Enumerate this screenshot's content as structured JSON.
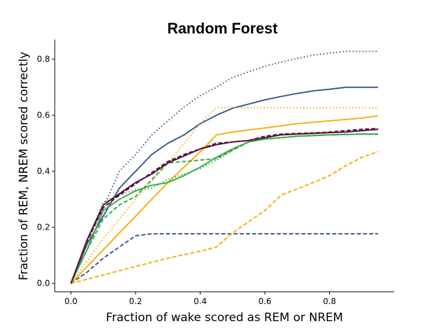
{
  "chart_data": {
    "type": "line",
    "title": "Random Forest",
    "xlabel": "Fraction of wake scored as REM or NREM",
    "ylabel": "Fraction of REM, NREM scored correctly",
    "xlim": [
      -0.05,
      1.0
    ],
    "ylim": [
      -0.03,
      0.87
    ],
    "xticks": [
      0.0,
      0.2,
      0.4,
      0.6,
      0.8
    ],
    "xtick_labels": [
      "0.0",
      "0.2",
      "0.4",
      "0.6",
      "0.8"
    ],
    "yticks": [
      0.0,
      0.2,
      0.4,
      0.6,
      0.8
    ],
    "ytick_labels": [
      "0.0",
      "0.2",
      "0.4",
      "0.6",
      "0.8"
    ],
    "grid": false,
    "legend": "none",
    "series": [
      {
        "color": "#3a5a8c",
        "dash": "solid",
        "x": [
          0.0,
          0.05,
          0.1,
          0.15,
          0.2,
          0.25,
          0.3,
          0.35,
          0.4,
          0.45,
          0.5,
          0.55,
          0.6,
          0.65,
          0.7,
          0.75,
          0.8,
          0.85,
          0.9,
          0.95
        ],
        "y": [
          0.0,
          0.14,
          0.24,
          0.34,
          0.4,
          0.46,
          0.5,
          0.53,
          0.57,
          0.6,
          0.625,
          0.64,
          0.655,
          0.667,
          0.678,
          0.687,
          0.693,
          0.7,
          0.7,
          0.7
        ]
      },
      {
        "color": "#3a5a8c",
        "dash": "dotted",
        "x": [
          0.0,
          0.05,
          0.1,
          0.15,
          0.2,
          0.25,
          0.3,
          0.35,
          0.4,
          0.45,
          0.5,
          0.55,
          0.6,
          0.65,
          0.7,
          0.75,
          0.8,
          0.85,
          0.9,
          0.95
        ],
        "y": [
          0.0,
          0.15,
          0.27,
          0.4,
          0.46,
          0.53,
          0.58,
          0.63,
          0.67,
          0.7,
          0.735,
          0.755,
          0.775,
          0.79,
          0.803,
          0.815,
          0.822,
          0.828,
          0.828,
          0.828
        ]
      },
      {
        "color": "#3a5a8c",
        "dash": "dashed",
        "x": [
          0.0,
          0.05,
          0.1,
          0.15,
          0.2,
          0.25,
          0.3,
          0.4,
          0.5,
          0.6,
          0.7,
          0.8,
          0.95
        ],
        "y": [
          0.0,
          0.04,
          0.09,
          0.13,
          0.17,
          0.177,
          0.177,
          0.177,
          0.177,
          0.177,
          0.177,
          0.177,
          0.177
        ]
      },
      {
        "color": "#f5b00f",
        "dash": "solid",
        "x": [
          0.0,
          0.1,
          0.2,
          0.3,
          0.4,
          0.45,
          0.5,
          0.6,
          0.7,
          0.8,
          0.9,
          0.95
        ],
        "y": [
          0.0,
          0.12,
          0.24,
          0.36,
          0.47,
          0.53,
          0.54,
          0.555,
          0.57,
          0.58,
          0.59,
          0.598
        ]
      },
      {
        "color": "#f5b00f",
        "dash": "dotted",
        "x": [
          0.0,
          0.1,
          0.2,
          0.3,
          0.4,
          0.45,
          0.5,
          0.6,
          0.7,
          0.8,
          0.9,
          0.95
        ],
        "y": [
          0.0,
          0.16,
          0.3,
          0.43,
          0.57,
          0.627,
          0.627,
          0.627,
          0.627,
          0.627,
          0.627,
          0.627
        ]
      },
      {
        "color": "#f5b00f",
        "dash": "dashed",
        "x": [
          0.0,
          0.1,
          0.2,
          0.3,
          0.4,
          0.45,
          0.5,
          0.6,
          0.65,
          0.75,
          0.8,
          0.85,
          0.9,
          0.95
        ],
        "y": [
          0.0,
          0.03,
          0.06,
          0.09,
          0.115,
          0.13,
          0.18,
          0.26,
          0.315,
          0.36,
          0.385,
          0.42,
          0.45,
          0.47
        ]
      },
      {
        "color": "#3aaa48",
        "dash": "solid",
        "x": [
          0.0,
          0.05,
          0.1,
          0.15,
          0.2,
          0.25,
          0.3,
          0.35,
          0.4,
          0.45,
          0.5,
          0.55,
          0.6,
          0.65,
          0.7,
          0.8,
          0.9,
          0.95
        ],
        "y": [
          0.0,
          0.12,
          0.26,
          0.3,
          0.33,
          0.35,
          0.36,
          0.385,
          0.415,
          0.45,
          0.48,
          0.505,
          0.515,
          0.52,
          0.525,
          0.53,
          0.533,
          0.533
        ]
      },
      {
        "color": "#3aaa48",
        "dash": "dotted",
        "x": [
          0.0,
          0.05,
          0.1,
          0.15,
          0.2,
          0.25,
          0.3,
          0.35,
          0.4,
          0.45,
          0.5,
          0.55,
          0.6,
          0.65,
          0.7,
          0.8,
          0.9,
          0.95
        ],
        "y": [
          0.0,
          0.15,
          0.29,
          0.315,
          0.335,
          0.34,
          0.37,
          0.39,
          0.41,
          0.44,
          0.475,
          0.505,
          0.515,
          0.52,
          0.525,
          0.53,
          0.533,
          0.533
        ]
      },
      {
        "color": "#3aaa48",
        "dash": "dashed",
        "x": [
          0.0,
          0.05,
          0.1,
          0.15,
          0.2,
          0.25,
          0.3,
          0.35,
          0.4,
          0.45,
          0.5,
          0.55,
          0.6,
          0.65,
          0.7,
          0.8,
          0.9,
          0.95
        ],
        "y": [
          0.0,
          0.12,
          0.23,
          0.28,
          0.31,
          0.37,
          0.43,
          0.435,
          0.44,
          0.445,
          0.475,
          0.505,
          0.515,
          0.52,
          0.525,
          0.53,
          0.533,
          0.533
        ]
      },
      {
        "color": "#5a1040",
        "dash": "solid",
        "x": [
          0.0,
          0.05,
          0.1,
          0.15,
          0.2,
          0.25,
          0.3,
          0.35,
          0.4,
          0.45,
          0.5,
          0.55,
          0.6,
          0.65,
          0.7,
          0.75,
          0.8,
          0.85,
          0.9,
          0.95
        ],
        "y": [
          0.0,
          0.155,
          0.28,
          0.32,
          0.36,
          0.39,
          0.43,
          0.455,
          0.48,
          0.495,
          0.505,
          0.51,
          0.52,
          0.53,
          0.533,
          0.535,
          0.538,
          0.54,
          0.545,
          0.55
        ]
      },
      {
        "color": "#5a1040",
        "dash": "dashed",
        "x": [
          0.0,
          0.05,
          0.1,
          0.15,
          0.2,
          0.25,
          0.3,
          0.35,
          0.4,
          0.45,
          0.5,
          0.55,
          0.6,
          0.65,
          0.7,
          0.75,
          0.8,
          0.85,
          0.9,
          0.95
        ],
        "y": [
          0.0,
          0.15,
          0.27,
          0.315,
          0.355,
          0.395,
          0.435,
          0.46,
          0.48,
          0.5,
          0.505,
          0.51,
          0.525,
          0.533,
          0.535,
          0.537,
          0.54,
          0.545,
          0.55,
          0.553
        ]
      }
    ]
  }
}
